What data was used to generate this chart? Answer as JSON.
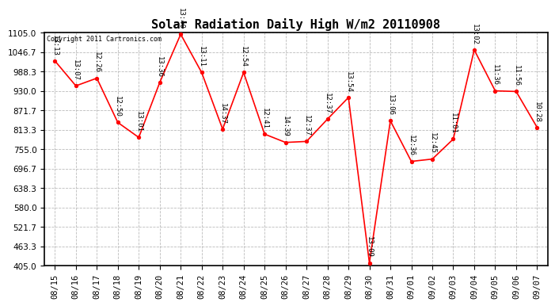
{
  "title": "Solar Radiation Daily High W/m2 20110908",
  "copyright": "Copyright 2011 Cartronics.com",
  "dates": [
    "08/15",
    "08/16",
    "08/17",
    "08/18",
    "08/19",
    "08/20",
    "08/21",
    "08/22",
    "08/23",
    "08/24",
    "08/25",
    "08/26",
    "08/27",
    "08/28",
    "08/29",
    "08/30",
    "08/31",
    "09/01",
    "09/02",
    "09/03",
    "09/04",
    "09/05",
    "09/06",
    "09/07"
  ],
  "values": [
    1020,
    945,
    968,
    835,
    790,
    955,
    1100,
    985,
    815,
    985,
    800,
    775,
    778,
    845,
    910,
    413,
    840,
    718,
    725,
    785,
    1053,
    930,
    928,
    820
  ],
  "labels": [
    "13:13",
    "13:07",
    "12:26",
    "12:50",
    "13:01",
    "13:36",
    "13:40",
    "13:11",
    "14:37",
    "12:54",
    "12:41",
    "14:39",
    "12:37",
    "12:37",
    "13:54",
    "13:09",
    "13:06",
    "12:36",
    "12:45",
    "11:01",
    "13:02",
    "11:36",
    "11:56",
    "10:28"
  ],
  "line_color": "#ff0000",
  "marker_color": "#ff0000",
  "bg_color": "#ffffff",
  "grid_color": "#bbbbbb",
  "ylim_min": 405.0,
  "ylim_max": 1105.0,
  "yticks": [
    405.0,
    463.3,
    521.7,
    580.0,
    638.3,
    696.7,
    755.0,
    813.3,
    871.7,
    930.0,
    988.3,
    1046.7,
    1105.0
  ],
  "title_fontsize": 11,
  "label_fontsize": 6.5,
  "tick_fontsize": 7.5,
  "copyright_fontsize": 6
}
